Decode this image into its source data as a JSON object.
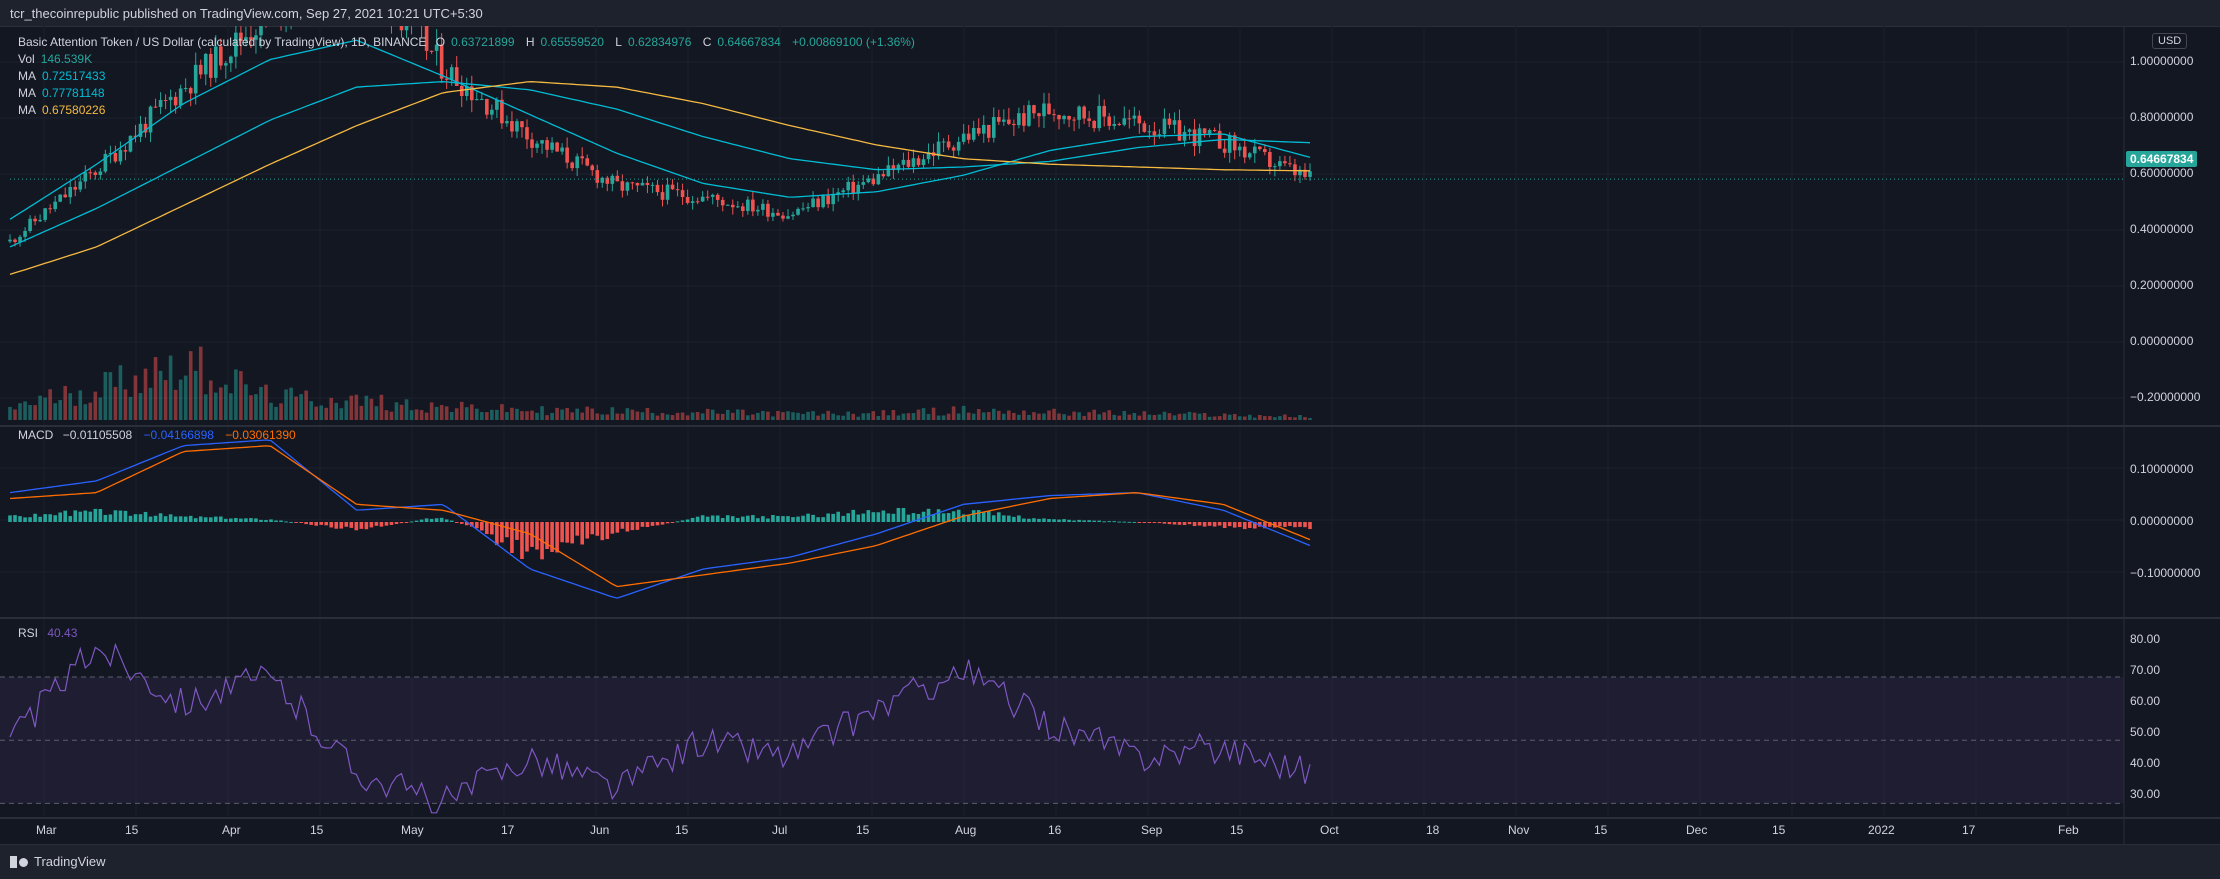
{
  "header": {
    "publisher": "tcr_thecoinrepublic published on TradingView.com, Sep 27, 2021 10:21 UTC+5:30"
  },
  "footer": {
    "brand": "TradingView"
  },
  "price_pane": {
    "currency": "USD",
    "symbol_line": "Basic Attention Token / US Dollar (calculated by TradingView), 1D, BINANCE",
    "ohlc": {
      "o_label": "O",
      "o": "0.63721899",
      "h_label": "H",
      "h": "0.65559520",
      "l_label": "L",
      "l": "0.62834976",
      "c_label": "C",
      "c": "0.64667834",
      "change": "+0.00869100 (+1.36%)"
    },
    "vol": {
      "label": "Vol",
      "value": "146.539K"
    },
    "mas": [
      {
        "label": "MA",
        "value": "0.72517433",
        "color": "#00bcd4"
      },
      {
        "label": "MA",
        "value": "0.77781148",
        "color": "#00bcd4"
      },
      {
        "label": "MA",
        "value": "0.67580226",
        "color": "#f5b942"
      }
    ],
    "last_price": "0.64667834",
    "ticks": [
      "1.00000000",
      "0.80000000",
      "0.60000000",
      "0.40000000",
      "0.20000000",
      "0.00000000",
      "−0.20000000"
    ]
  },
  "macd_pane": {
    "label": "MACD",
    "v1": "−0.01105508",
    "v2": "−0.04166898",
    "v3": "−0.03061390",
    "ticks": [
      "0.10000000",
      "0.00000000",
      "−0.10000000"
    ]
  },
  "rsi_pane": {
    "label": "RSI",
    "value": "40.43",
    "ticks": [
      "80.00",
      "70.00",
      "60.00",
      "50.00",
      "40.00",
      "30.00"
    ]
  },
  "time_axis": [
    "Mar",
    "15",
    "Apr",
    "15",
    "May",
    "17",
    "Jun",
    "15",
    "Jul",
    "15",
    "Aug",
    "16",
    "Sep",
    "15",
    "Oct",
    "18",
    "Nov",
    "15",
    "Dec",
    "15",
    "2022",
    "17",
    "Feb"
  ],
  "colors": {
    "up": "#26a69a",
    "down": "#ef5350",
    "macd": "#2962ff",
    "signal": "#ff6d00",
    "rsi": "#7e57c2",
    "ma_fast": "#00bcd4",
    "ma_slow": "#f5b942"
  },
  "chart_data": [
    {
      "type": "line",
      "subtype": "candlestick",
      "title": "Basic Attention Token / US Dollar (calculated by TradingView), 1D, BINANCE",
      "ylim": [
        -0.25,
        1.1
      ],
      "x": [
        "2021-03-01",
        "2021-03-15",
        "2021-04-01",
        "2021-04-15",
        "2021-05-01",
        "2021-05-17",
        "2021-06-01",
        "2021-06-15",
        "2021-07-01",
        "2021-07-15",
        "2021-08-01",
        "2021-08-16",
        "2021-09-01",
        "2021-09-07",
        "2021-09-15",
        "2021-09-27"
      ],
      "series": [
        {
          "values": [
            0.42,
            0.68,
            0.98,
            1.25,
            1.45,
            1.05,
            0.8,
            0.62,
            0.58,
            0.52,
            0.65,
            0.8,
            0.9,
            0.85,
            0.78,
            0.646
          ]
        },
        {
          "values": [
            0.5,
            0.7,
            0.92,
            1.08,
            1.15,
            1.02,
            0.88,
            0.74,
            0.63,
            0.58,
            0.6,
            0.66,
            0.75,
            0.8,
            0.81,
            0.725
          ]
        },
        {
          "values": [
            0.4,
            0.54,
            0.7,
            0.86,
            0.98,
            1.0,
            0.97,
            0.9,
            0.8,
            0.72,
            0.68,
            0.69,
            0.71,
            0.76,
            0.79,
            0.778
          ]
        },
        {
          "values": [
            0.3,
            0.4,
            0.55,
            0.7,
            0.84,
            0.96,
            1.0,
            0.98,
            0.92,
            0.84,
            0.77,
            0.72,
            0.7,
            0.69,
            0.68,
            0.676
          ]
        }
      ]
    },
    {
      "type": "bar",
      "title": "Vol",
      "values": [
        0.2,
        0.5,
        0.9,
        0.35,
        0.3,
        0.2,
        0.15,
        0.14,
        0.12,
        0.1,
        0.1,
        0.15,
        0.12,
        0.1,
        0.08,
        0.05
      ]
    },
    {
      "type": "line",
      "title": "MACD",
      "ylim": [
        -0.16,
        0.16
      ],
      "x": [
        "2021-03-01",
        "2021-03-15",
        "2021-04-01",
        "2021-04-15",
        "2021-05-01",
        "2021-05-17",
        "2021-06-01",
        "2021-06-15",
        "2021-07-01",
        "2021-07-15",
        "2021-08-01",
        "2021-08-16",
        "2021-09-01",
        "2021-09-07",
        "2021-09-15",
        "2021-09-27"
      ],
      "series": [
        {
          "values": [
            0.05,
            0.07,
            0.13,
            0.14,
            0.02,
            0.03,
            -0.08,
            -0.13,
            -0.08,
            -0.06,
            -0.02,
            0.03,
            0.045,
            0.05,
            0.02,
            -0.04
          ]
        },
        {
          "values": [
            0.04,
            0.05,
            0.12,
            0.13,
            0.03,
            0.02,
            -0.02,
            -0.11,
            -0.09,
            -0.07,
            -0.04,
            0.01,
            0.04,
            0.05,
            0.03,
            -0.03
          ]
        }
      ],
      "histogram": [
        0.01,
        0.02,
        0.01,
        0.005,
        -0.015,
        0.01,
        -0.06,
        -0.02,
        0.01,
        0.01,
        0.02,
        0.02,
        0.005,
        0.0,
        -0.01,
        -0.011
      ]
    },
    {
      "type": "line",
      "title": "RSI",
      "ylim": [
        26,
        83
      ],
      "x": [
        "2021-03-01",
        "2021-03-15",
        "2021-04-01",
        "2021-04-15",
        "2021-05-01",
        "2021-05-17",
        "2021-06-01",
        "2021-06-15",
        "2021-07-01",
        "2021-07-15",
        "2021-08-01",
        "2021-08-16",
        "2021-09-01",
        "2021-09-07",
        "2021-09-15",
        "2021-09-27"
      ],
      "series": [
        {
          "values": [
            50,
            80,
            62,
            70,
            40,
            30,
            45,
            35,
            50,
            45,
            60,
            72,
            55,
            45,
            48,
            40.43
          ]
        }
      ],
      "bands": [
        70,
        50,
        30
      ]
    }
  ]
}
